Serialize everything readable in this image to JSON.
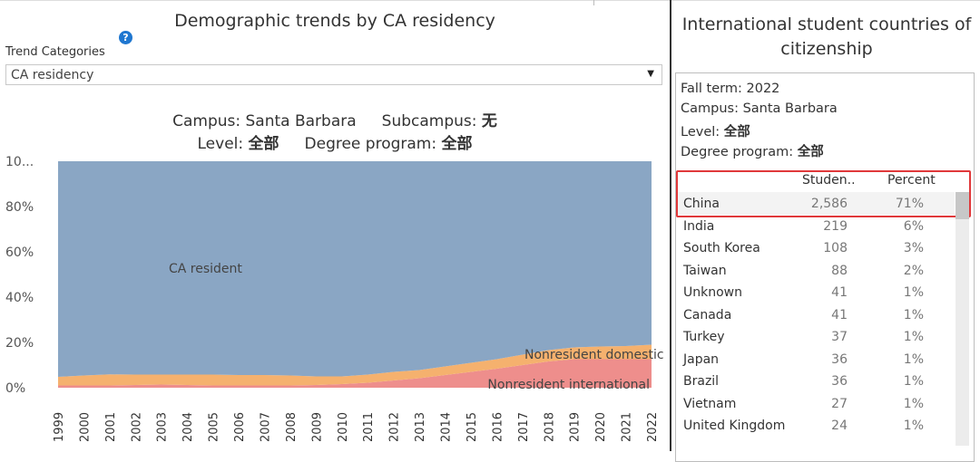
{
  "left_panel": {
    "title": "Demographic trends by CA residency",
    "help_icon": "?",
    "trend_label": "Trend Categories",
    "dropdown_value": "CA residency",
    "subtitle_campus": "Campus: Santa Barbara",
    "subtitle_subcampus": "Subcampus:",
    "subtitle_subcampus_value": "无",
    "subtitle_level": "Level:",
    "subtitle_level_value": "全部",
    "subtitle_degree": "Degree program:",
    "subtitle_degree_value": "全部"
  },
  "chart_data": {
    "type": "area",
    "stacked": true,
    "normalized": "percent",
    "x": [
      1999,
      2000,
      2001,
      2002,
      2003,
      2004,
      2005,
      2006,
      2007,
      2008,
      2009,
      2010,
      2011,
      2012,
      2013,
      2014,
      2015,
      2016,
      2017,
      2018,
      2019,
      2020,
      2021,
      2022
    ],
    "y_ticks": [
      "0%",
      "20%",
      "40%",
      "60%",
      "80%",
      "10..."
    ],
    "ylim": [
      0,
      100
    ],
    "series": [
      {
        "name": "Nonresident international",
        "label": "Nonresident international",
        "color": "#ee8e8c",
        "values": [
          1.0,
          1.0,
          1.0,
          1.2,
          1.4,
          1.2,
          1.0,
          1.0,
          1.0,
          1.0,
          1.2,
          1.6,
          2.2,
          3.2,
          4.2,
          5.6,
          7.0,
          8.4,
          10.0,
          11.6,
          12.6,
          12.6,
          12.6,
          12.6
        ]
      },
      {
        "name": "Nonresident domestic",
        "label": "Nonresident domestic",
        "color": "#f5b16e",
        "values": [
          3.8,
          4.4,
          4.9,
          4.6,
          4.4,
          4.6,
          4.8,
          4.6,
          4.6,
          4.4,
          3.8,
          3.4,
          3.6,
          3.8,
          3.6,
          3.8,
          4.0,
          4.2,
          4.6,
          5.0,
          5.2,
          5.6,
          5.8,
          6.4
        ]
      },
      {
        "name": "CA resident",
        "label": "CA resident",
        "color": "#8aa6c4",
        "values": [
          95.2,
          94.6,
          94.1,
          94.2,
          94.2,
          94.2,
          94.2,
          94.4,
          94.4,
          94.6,
          95.0,
          95.0,
          94.2,
          93.0,
          92.2,
          90.6,
          89.0,
          87.4,
          85.4,
          83.4,
          82.2,
          81.8,
          81.6,
          81.0
        ]
      }
    ]
  },
  "right_panel": {
    "title": "International student countries of citizenship",
    "fall_term": "Fall term: 2022",
    "campus": "Campus: Santa Barbara",
    "level_label": "Level:",
    "level_value": "全部",
    "degree_label": "Degree program:",
    "degree_value": "全部",
    "col_students": "Studen..",
    "col_percent": "Percent",
    "rows": [
      {
        "country": "China",
        "students": "2,586",
        "percent": "71%"
      },
      {
        "country": "India",
        "students": "219",
        "percent": "6%"
      },
      {
        "country": "South Korea",
        "students": "108",
        "percent": "3%"
      },
      {
        "country": "Taiwan",
        "students": "88",
        "percent": "2%"
      },
      {
        "country": "Unknown",
        "students": "41",
        "percent": "1%"
      },
      {
        "country": "Canada",
        "students": "41",
        "percent": "1%"
      },
      {
        "country": "Turkey",
        "students": "37",
        "percent": "1%"
      },
      {
        "country": "Japan",
        "students": "36",
        "percent": "1%"
      },
      {
        "country": "Brazil",
        "students": "36",
        "percent": "1%"
      },
      {
        "country": "Vietnam",
        "students": "27",
        "percent": "1%"
      },
      {
        "country": "United Kingdom",
        "students": "24",
        "percent": "1%"
      }
    ]
  }
}
